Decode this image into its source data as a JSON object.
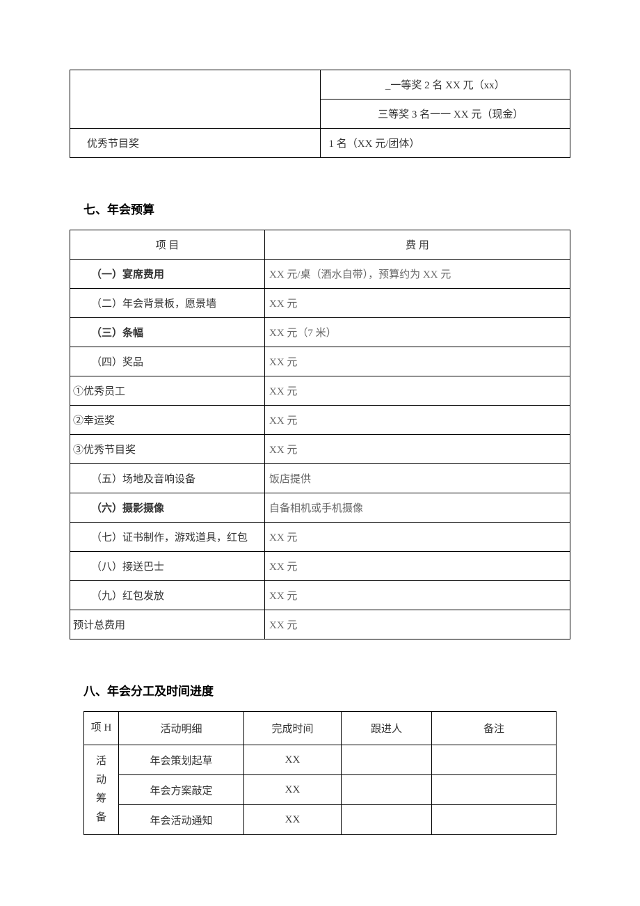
{
  "table1": {
    "rows": [
      {
        "c1": "",
        "c2": "_一等奖 2 名 XX 兀（xx）",
        "c2_align": "center"
      },
      {
        "c1": "",
        "c2": "三等奖 3 名一一 XX 元（现金）",
        "c2_align": "center"
      },
      {
        "c1": "优秀节目奖",
        "c2": "1 名（XX 元/团体）",
        "c2_align": "left"
      }
    ]
  },
  "section7": {
    "heading": "七、年会预算",
    "headers": {
      "item": "项 目",
      "cost": "费 用"
    },
    "rows": [
      {
        "item": "（一）宴席费用",
        "item_bold": true,
        "item_class": "col-item",
        "cost": "XX 元/桌（酒水自带），预算约为 XX 元"
      },
      {
        "item": "（二）年会背景板，愿景墙",
        "item_class": "col-item",
        "cost": "XX 元"
      },
      {
        "item": "（三）条幅",
        "item_bold": true,
        "item_class": "col-item",
        "cost": "XX 元（7 米）"
      },
      {
        "item": "（四）奖品",
        "item_class": "col-item",
        "cost": "XX 元"
      },
      {
        "item": "①优秀员工",
        "item_class": "col-sub",
        "cost": "XX 元"
      },
      {
        "item": "②幸运奖",
        "item_class": "col-sub",
        "cost": "XX 元"
      },
      {
        "item": "③优秀节目奖",
        "item_class": "col-sub",
        "cost": "XX 元"
      },
      {
        "item": "（五）场地及音响设备",
        "item_class": "col-item",
        "cost": "饭店提供"
      },
      {
        "item": "（六）摄影摄像",
        "item_bold": true,
        "item_class": "col-item",
        "cost": "自备相机或手机摄像"
      },
      {
        "item": "（七）证书制作，游戏道具，红包",
        "item_class": "col-item",
        "cost": "XX 元"
      },
      {
        "item": "（八）接送巴士",
        "item_class": "col-item",
        "cost": "XX 元"
      },
      {
        "item": "（九）红包发放",
        "item_class": "col-item",
        "cost": "XX 元"
      },
      {
        "item": "预计总费用",
        "item_class": "col-sub",
        "cost": "XX 元"
      }
    ]
  },
  "section8": {
    "heading": "八、年会分工及时间进度",
    "headers": {
      "project": "项 H",
      "detail": "活动明细",
      "time": "完成时间",
      "person": "跟进人",
      "note": "备注"
    },
    "group_label": "活 动 筹 备",
    "rows": [
      {
        "detail": "年会策划起草",
        "time": "XX",
        "person": "",
        "note": ""
      },
      {
        "detail": "年会方案敲定",
        "time": "XX",
        "person": "",
        "note": ""
      },
      {
        "detail": "年会活动通知",
        "time": "XX",
        "person": "",
        "note": ""
      }
    ]
  }
}
